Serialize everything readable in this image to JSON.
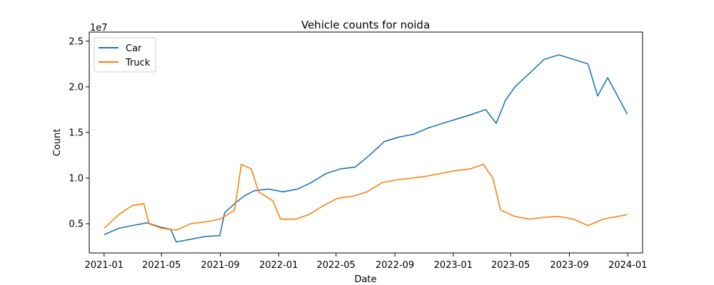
{
  "chart_data": {
    "type": "line",
    "title": "Vehicle counts for noida",
    "xlabel": "Date",
    "ylabel": "Count",
    "y_multiplier_label": "1e7",
    "x_range": [
      "2020-12-01",
      "2024-02-01"
    ],
    "ylim": [
      0.18,
      2.6
    ],
    "x_ticks": [
      {
        "date": "2021-01-01",
        "label": "2021-01"
      },
      {
        "date": "2021-05-01",
        "label": "2021-05"
      },
      {
        "date": "2021-09-01",
        "label": "2021-09"
      },
      {
        "date": "2022-01-01",
        "label": "2022-01"
      },
      {
        "date": "2022-05-01",
        "label": "2022-05"
      },
      {
        "date": "2022-09-01",
        "label": "2022-09"
      },
      {
        "date": "2023-01-01",
        "label": "2023-01"
      },
      {
        "date": "2023-05-01",
        "label": "2023-05"
      },
      {
        "date": "2023-09-01",
        "label": "2023-09"
      },
      {
        "date": "2024-01-01",
        "label": "2024-01"
      }
    ],
    "y_ticks": [
      {
        "value": 0.5,
        "label": "0.5"
      },
      {
        "value": 1.0,
        "label": "1.0"
      },
      {
        "value": 1.5,
        "label": "1.5"
      },
      {
        "value": 2.0,
        "label": "2.0"
      },
      {
        "value": 2.5,
        "label": "2.5"
      }
    ],
    "grid": false,
    "legend_position": "top-left",
    "series": [
      {
        "name": "Car",
        "color": "#1f77b4",
        "points": [
          [
            "2021-01-01",
            0.38
          ],
          [
            "2021-02-01",
            0.45
          ],
          [
            "2021-03-01",
            0.48
          ],
          [
            "2021-04-01",
            0.51
          ],
          [
            "2021-05-01",
            0.46
          ],
          [
            "2021-05-20",
            0.44
          ],
          [
            "2021-06-01",
            0.3
          ],
          [
            "2021-07-01",
            0.33
          ],
          [
            "2021-08-01",
            0.36
          ],
          [
            "2021-08-31",
            0.37
          ],
          [
            "2021-09-10",
            0.62
          ],
          [
            "2021-10-01",
            0.72
          ],
          [
            "2021-10-20",
            0.8
          ],
          [
            "2021-11-10",
            0.86
          ],
          [
            "2021-12-10",
            0.88
          ],
          [
            "2022-01-10",
            0.85
          ],
          [
            "2022-02-10",
            0.88
          ],
          [
            "2022-03-10",
            0.95
          ],
          [
            "2022-04-10",
            1.05
          ],
          [
            "2022-05-10",
            1.1
          ],
          [
            "2022-06-10",
            1.12
          ],
          [
            "2022-07-10",
            1.25
          ],
          [
            "2022-08-10",
            1.4
          ],
          [
            "2022-09-10",
            1.45
          ],
          [
            "2022-10-10",
            1.48
          ],
          [
            "2022-11-10",
            1.55
          ],
          [
            "2022-12-10",
            1.6
          ],
          [
            "2023-01-10",
            1.65
          ],
          [
            "2023-02-10",
            1.7
          ],
          [
            "2023-03-10",
            1.75
          ],
          [
            "2023-04-01",
            1.6
          ],
          [
            "2023-04-20",
            1.85
          ],
          [
            "2023-05-10",
            2.0
          ],
          [
            "2023-06-10",
            2.15
          ],
          [
            "2023-07-10",
            2.3
          ],
          [
            "2023-08-10",
            2.35
          ],
          [
            "2023-09-10",
            2.3
          ],
          [
            "2023-10-10",
            2.25
          ],
          [
            "2023-10-30",
            1.9
          ],
          [
            "2023-11-20",
            2.1
          ],
          [
            "2023-12-31",
            1.7
          ]
        ]
      },
      {
        "name": "Truck",
        "color": "#ff7f0e",
        "points": [
          [
            "2021-01-01",
            0.45
          ],
          [
            "2021-02-01",
            0.6
          ],
          [
            "2021-03-01",
            0.7
          ],
          [
            "2021-03-25",
            0.72
          ],
          [
            "2021-04-05",
            0.5
          ],
          [
            "2021-05-01",
            0.45
          ],
          [
            "2021-06-01",
            0.43
          ],
          [
            "2021-07-01",
            0.5
          ],
          [
            "2021-08-01",
            0.52
          ],
          [
            "2021-09-01",
            0.55
          ],
          [
            "2021-10-01",
            0.65
          ],
          [
            "2021-10-15",
            1.15
          ],
          [
            "2021-11-05",
            1.1
          ],
          [
            "2021-11-20",
            0.85
          ],
          [
            "2021-12-20",
            0.75
          ],
          [
            "2022-01-05",
            0.55
          ],
          [
            "2022-02-05",
            0.55
          ],
          [
            "2022-03-05",
            0.6
          ],
          [
            "2022-04-05",
            0.7
          ],
          [
            "2022-05-05",
            0.78
          ],
          [
            "2022-06-05",
            0.8
          ],
          [
            "2022-07-05",
            0.85
          ],
          [
            "2022-08-05",
            0.95
          ],
          [
            "2022-09-05",
            0.98
          ],
          [
            "2022-10-05",
            1.0
          ],
          [
            "2022-11-05",
            1.02
          ],
          [
            "2022-12-05",
            1.05
          ],
          [
            "2023-01-05",
            1.08
          ],
          [
            "2023-02-05",
            1.1
          ],
          [
            "2023-03-05",
            1.15
          ],
          [
            "2023-03-25",
            1.0
          ],
          [
            "2023-04-10",
            0.65
          ],
          [
            "2023-05-10",
            0.58
          ],
          [
            "2023-06-10",
            0.55
          ],
          [
            "2023-07-10",
            0.57
          ],
          [
            "2023-08-10",
            0.58
          ],
          [
            "2023-09-10",
            0.55
          ],
          [
            "2023-10-10",
            0.48
          ],
          [
            "2023-11-10",
            0.55
          ],
          [
            "2023-12-31",
            0.6
          ]
        ]
      }
    ]
  }
}
